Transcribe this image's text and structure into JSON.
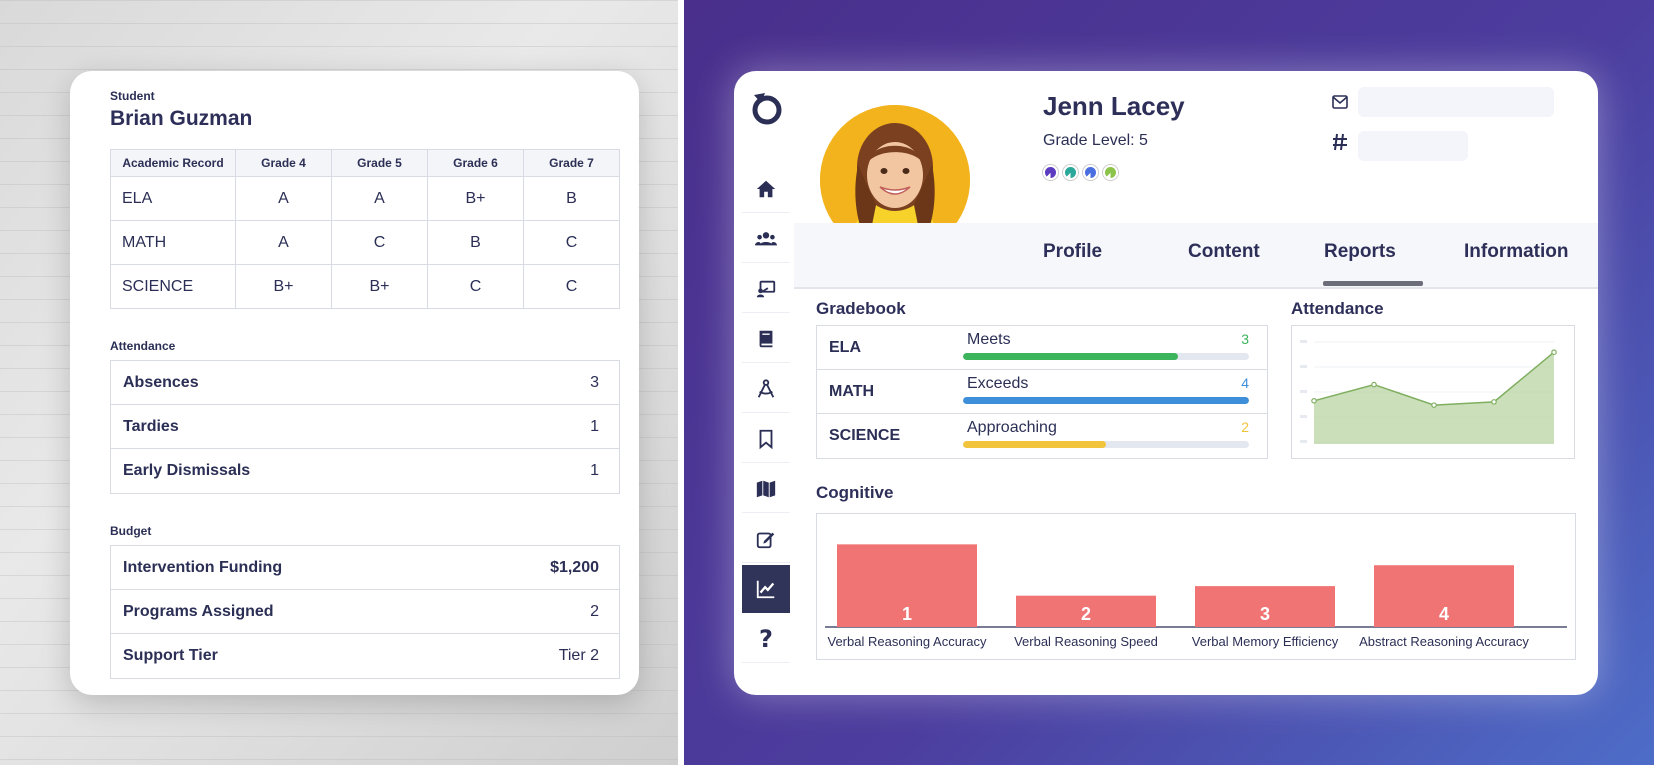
{
  "student_card": {
    "label": "Student",
    "name": "Brian Guzman",
    "record": {
      "headers": [
        "Academic Record",
        "Grade 4",
        "Grade 5",
        "Grade 6",
        "Grade 7"
      ],
      "rows": [
        [
          "ELA",
          "A",
          "A",
          "B+",
          "B"
        ],
        [
          "MATH",
          "A",
          "C",
          "B",
          "C"
        ],
        [
          "SCIENCE",
          "B+",
          "B+",
          "C",
          "C"
        ]
      ]
    },
    "attendance": {
      "label": "Attendance",
      "rows": [
        {
          "label": "Absences",
          "value": "3"
        },
        {
          "label": "Tardies",
          "value": "1"
        },
        {
          "label": "Early Dismissals",
          "value": "1"
        }
      ]
    },
    "budget": {
      "label": "Budget",
      "rows": [
        {
          "label": "Intervention Funding",
          "value": "$1,200"
        },
        {
          "label": "Programs Assigned",
          "value": "2"
        },
        {
          "label": "Support Tier",
          "value": "Tier 2"
        }
      ]
    }
  },
  "sidebar": {
    "items": [
      {
        "icon": "home-icon"
      },
      {
        "icon": "users-icon"
      },
      {
        "icon": "teacher-board-icon"
      },
      {
        "icon": "book-icon"
      },
      {
        "icon": "compass-icon"
      },
      {
        "icon": "bookmark-icon"
      },
      {
        "icon": "map-icon"
      },
      {
        "icon": "edit-icon"
      },
      {
        "icon": "chart-line-icon",
        "active": true
      },
      {
        "icon": "help-icon",
        "text": "?"
      }
    ]
  },
  "profile": {
    "name": "Jenn Lacey",
    "grade_level": "Grade Level: 5",
    "dot_colors": [
      "#5b3bbf",
      "#2aa89a",
      "#4a6de0",
      "#8cc34a"
    ]
  },
  "tabs": [
    {
      "label": "Profile"
    },
    {
      "label": "Content"
    },
    {
      "label": "Reports",
      "active": true
    },
    {
      "label": "Information"
    }
  ],
  "gradebook": {
    "title": "Gradebook",
    "rows": [
      {
        "subject": "ELA",
        "level": "Meets",
        "score": "3",
        "fraction": 0.75,
        "color": "#3bb45c"
      },
      {
        "subject": "MATH",
        "level": "Exceeds",
        "score": "4",
        "fraction": 1.0,
        "color": "#3d8fd9"
      },
      {
        "subject": "SCIENCE",
        "level": "Approaching",
        "score": "2",
        "fraction": 0.5,
        "color": "#f1c43c"
      }
    ]
  },
  "attendance_widget": {
    "title": "Attendance"
  },
  "cognitive": {
    "title": "Cognitive"
  },
  "chart_data": [
    {
      "type": "area",
      "title": "Attendance",
      "x": [
        1,
        2,
        3,
        4,
        5
      ],
      "values": [
        0.4,
        0.55,
        0.36,
        0.39,
        0.85
      ],
      "ylim": [
        0,
        1
      ],
      "color": "#a8cc8c",
      "grid": true
    },
    {
      "type": "bar",
      "title": "Cognitive",
      "categories": [
        "Verbal Reasoning Accuracy",
        "Verbal Reasoning Speed",
        "Verbal Memory Efficiency",
        "Abstract Reasoning Accuracy"
      ],
      "values": [
        1,
        2,
        3,
        4
      ],
      "data_labels": [
        "1",
        "2",
        "3",
        "4"
      ],
      "heights": [
        0.95,
        0.36,
        0.47,
        0.71
      ],
      "color": "#f07474"
    }
  ]
}
